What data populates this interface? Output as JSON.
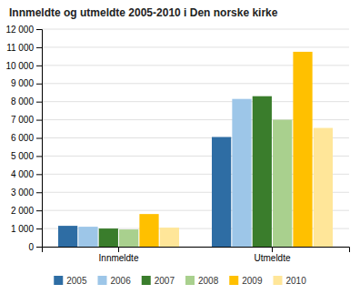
{
  "chart_data": {
    "type": "bar",
    "title": "Innmeldte og utmeldte 2005-2010 i Den norske kirke",
    "categories": [
      "Innmeldte",
      "Utmeldte"
    ],
    "series": [
      {
        "name": "2005",
        "color": "#2E6DA4",
        "values": [
          1150,
          6050
        ]
      },
      {
        "name": "2006",
        "color": "#9DC6E8",
        "values": [
          1100,
          8150
        ]
      },
      {
        "name": "2007",
        "color": "#3A7D2C",
        "values": [
          1000,
          8300
        ]
      },
      {
        "name": "2008",
        "color": "#A9D08E",
        "values": [
          950,
          7000
        ]
      },
      {
        "name": "2009",
        "color": "#FFC000",
        "values": [
          1800,
          10750
        ]
      },
      {
        "name": "2010",
        "color": "#FFE699",
        "values": [
          1050,
          6550
        ]
      }
    ],
    "ylim": [
      0,
      12000
    ],
    "yticks": [
      0,
      {
        "value": 1000,
        "label": "1 000"
      },
      {
        "value": 2000,
        "label": "2 000"
      },
      {
        "value": 3000,
        "label": "3 000"
      },
      {
        "value": 4000,
        "label": "4 000"
      },
      {
        "value": 5000,
        "label": "5 000"
      },
      {
        "value": 6000,
        "label": "6 000"
      },
      {
        "value": 7000,
        "label": "7 000"
      },
      {
        "value": 8000,
        "label": "8 000"
      },
      {
        "value": 9000,
        "label": "9 000"
      },
      {
        "value": 10000,
        "label": "10 000"
      },
      {
        "value": 11000,
        "label": "11 000"
      },
      {
        "value": 12000,
        "label": "12 000"
      }
    ],
    "grid": true,
    "legend": "bottom"
  }
}
